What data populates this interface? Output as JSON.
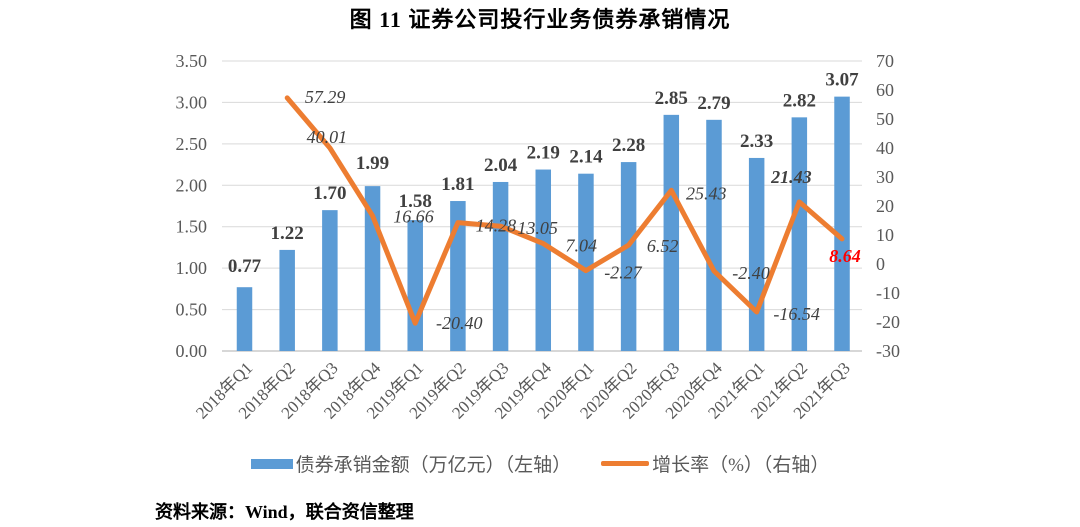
{
  "title": "图 11 证券公司投行业务债券承销情况",
  "source_note": "资料来源：Wind，联合资信整理",
  "legend": [
    {
      "label": "债券承销金额（万亿元）（左轴）",
      "marker": "bar-swatch",
      "color": "#5B9BD5"
    },
    {
      "label": "增长率（%）（右轴）",
      "marker": "line-swatch",
      "color": "#ED7D31"
    }
  ],
  "chart_data": {
    "type": "combo",
    "title": "图 11 证券公司投行业务债券承销情况",
    "categories": [
      "2018年Q1",
      "2018年Q2",
      "2018年Q3",
      "2018年Q4",
      "2019年Q1",
      "2019年Q2",
      "2019年Q3",
      "2019年Q4",
      "2020年Q1",
      "2020年Q2",
      "2020年Q3",
      "2020年Q4",
      "2021年Q1",
      "2021年Q2",
      "2021年Q3"
    ],
    "series": [
      {
        "name": "债券承销金额（万亿元）（左轴）",
        "type": "bar",
        "axis": "left",
        "color": "#5B9BD5",
        "values": [
          0.77,
          1.22,
          1.7,
          1.99,
          1.58,
          1.81,
          2.04,
          2.19,
          2.14,
          2.28,
          2.85,
          2.79,
          2.33,
          2.82,
          3.07
        ]
      },
      {
        "name": "增长率（%）（右轴）",
        "type": "line",
        "axis": "right",
        "color": "#ED7D31",
        "start_category_index": 1,
        "values": [
          57.29,
          40.01,
          16.66,
          -20.4,
          14.28,
          13.05,
          7.04,
          -2.27,
          6.52,
          25.43,
          -2.4,
          -16.54,
          21.43,
          8.64
        ],
        "label_emphasis": [
          {
            "index": 12,
            "value": 21.43,
            "bold": true,
            "color": "#404040"
          },
          {
            "index": 13,
            "value": 8.64,
            "bold": true,
            "color": "#FF0000"
          }
        ]
      }
    ],
    "left_axis": {
      "min": 0,
      "max": 3.5,
      "step": 0.5,
      "tick_labels": [
        "0.00",
        "0.50",
        "1.00",
        "1.50",
        "2.00",
        "2.50",
        "3.00",
        "3.50"
      ]
    },
    "right_axis": {
      "min": -30,
      "max": 70,
      "step": 10,
      "tick_labels": [
        "-30",
        "-20",
        "-10",
        "0",
        "10",
        "20",
        "30",
        "40",
        "50",
        "60",
        "70"
      ]
    },
    "grid": true,
    "legend_position": "bottom",
    "styles": {
      "label_color": "#404040",
      "axis_text_color": "#595959",
      "gridline_color": "#D9D9D9",
      "axis_line_color": "#BFBFBF",
      "emphasis_red": "#FF0000"
    }
  }
}
